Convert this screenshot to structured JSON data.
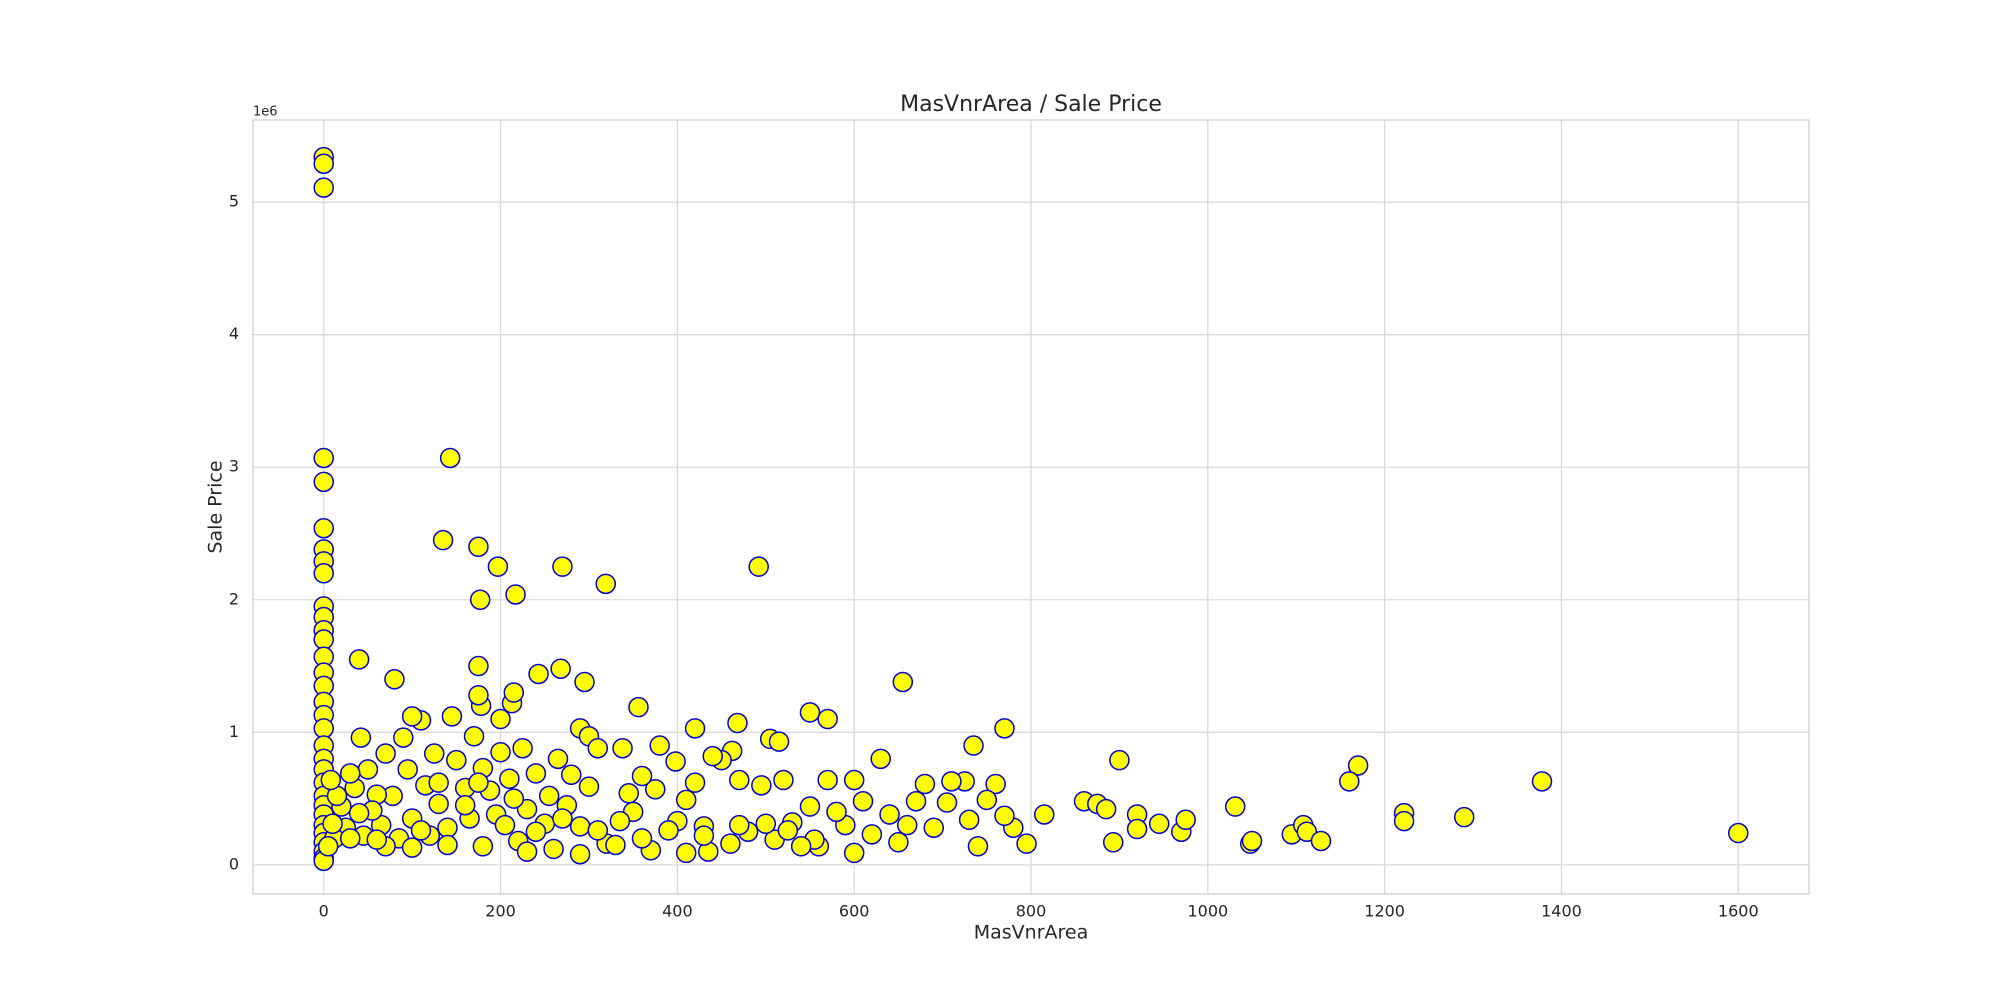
{
  "chart_data": {
    "type": "scatter",
    "title": "MasVnrArea / Sale Price",
    "x_label": "MasVnrArea",
    "y_label": "Sale Price",
    "y_offset_label": "1e6",
    "xlim": [
      -80,
      1680
    ],
    "ylim": [
      -0.22,
      5.62
    ],
    "xticks": [
      0,
      200,
      400,
      600,
      800,
      1000,
      1200,
      1400,
      1600
    ],
    "yticks": [
      0,
      1,
      2,
      3,
      4,
      5
    ],
    "grid": true,
    "x": [
      0,
      0,
      0,
      0,
      0,
      0,
      0,
      0,
      0,
      0,
      0,
      0,
      0,
      0,
      0,
      0,
      0,
      0,
      0,
      0,
      0,
      0,
      0,
      0,
      0,
      0,
      0,
      0,
      0,
      0,
      0,
      0,
      143,
      135,
      175,
      197,
      270,
      492,
      319,
      217,
      177,
      40,
      80,
      175,
      268,
      243,
      295,
      655,
      356,
      550,
      570,
      770,
      420,
      468,
      213,
      215,
      178,
      175,
      290,
      300,
      505,
      515,
      735,
      900,
      1170,
      630,
      1160,
      1378,
      1290,
      1222,
      1222,
      1600,
      1031,
      1048,
      1050,
      1095,
      1108,
      1112,
      1128,
      970,
      975,
      945,
      920,
      920,
      893,
      860,
      875,
      885,
      815,
      795,
      780,
      770,
      760,
      750,
      740,
      730,
      725,
      710,
      705,
      690,
      680,
      670,
      660,
      650,
      640,
      620,
      610,
      600,
      600,
      590,
      580,
      570,
      560,
      555,
      550,
      540,
      530,
      520,
      510,
      500,
      495,
      480,
      470,
      462,
      450,
      440,
      430,
      420,
      410,
      400,
      398,
      380,
      375,
      360,
      350,
      345,
      338,
      320,
      310,
      300,
      290,
      280,
      275,
      265,
      255,
      250,
      240,
      230,
      225,
      220,
      210,
      200,
      200,
      195,
      188,
      180,
      170,
      165,
      160,
      150,
      145,
      140,
      130,
      125,
      120,
      115,
      110,
      100,
      100,
      95,
      90,
      85,
      78,
      70,
      65,
      60,
      55,
      50,
      45,
      42,
      40,
      35,
      30,
      25,
      20,
      15,
      12,
      10,
      8,
      5,
      180,
      230,
      260,
      290,
      330,
      370,
      410,
      435,
      460,
      140,
      100,
      70,
      160,
      205,
      240,
      270,
      310,
      335,
      360,
      390,
      430,
      470,
      525,
      110,
      60,
      30,
      130,
      175,
      215
    ],
    "series": [
      {
        "color": "#ffff00",
        "edge_color": "#0000cc",
        "values": [
          5.34,
          5.29,
          5.11,
          3.07,
          2.89,
          2.54,
          2.38,
          2.29,
          2.2,
          1.95,
          1.87,
          1.77,
          1.7,
          1.57,
          1.45,
          1.35,
          1.23,
          1.13,
          1.03,
          0.9,
          0.8,
          0.72,
          0.62,
          0.52,
          0.45,
          0.38,
          0.3,
          0.24,
          0.17,
          0.1,
          0.05,
          0.03,
          3.07,
          2.45,
          2.4,
          2.25,
          2.25,
          2.25,
          2.12,
          2.04,
          2.0,
          1.55,
          1.4,
          1.5,
          1.48,
          1.44,
          1.38,
          1.38,
          1.19,
          1.15,
          1.1,
          1.03,
          1.03,
          1.07,
          1.22,
          1.3,
          1.2,
          1.28,
          1.03,
          0.97,
          0.95,
          0.93,
          0.9,
          0.79,
          0.75,
          0.8,
          0.63,
          0.63,
          0.36,
          0.39,
          0.33,
          0.24,
          0.44,
          0.16,
          0.18,
          0.23,
          0.3,
          0.25,
          0.18,
          0.25,
          0.34,
          0.31,
          0.38,
          0.27,
          0.17,
          0.48,
          0.46,
          0.42,
          0.38,
          0.16,
          0.28,
          0.37,
          0.61,
          0.49,
          0.14,
          0.34,
          0.63,
          0.63,
          0.47,
          0.28,
          0.61,
          0.48,
          0.3,
          0.17,
          0.38,
          0.23,
          0.48,
          0.64,
          0.09,
          0.3,
          0.4,
          0.64,
          0.14,
          0.19,
          0.44,
          0.14,
          0.32,
          0.64,
          0.19,
          0.31,
          0.6,
          0.25,
          0.64,
          0.86,
          0.79,
          0.82,
          0.29,
          0.62,
          0.49,
          0.33,
          0.78,
          0.9,
          0.57,
          0.67,
          0.4,
          0.54,
          0.88,
          0.16,
          0.88,
          0.59,
          0.29,
          0.68,
          0.45,
          0.8,
          0.52,
          0.31,
          0.69,
          0.42,
          0.88,
          0.18,
          0.65,
          1.1,
          0.85,
          0.38,
          0.56,
          0.73,
          0.97,
          0.35,
          0.58,
          0.79,
          1.12,
          0.28,
          0.46,
          0.84,
          0.22,
          0.6,
          1.09,
          1.12,
          0.35,
          0.72,
          0.96,
          0.2,
          0.52,
          0.84,
          0.3,
          0.53,
          0.41,
          0.72,
          0.22,
          0.96,
          0.39,
          0.58,
          0.69,
          0.28,
          0.44,
          0.52,
          0.2,
          0.31,
          0.64,
          0.14,
          0.14,
          0.1,
          0.12,
          0.08,
          0.15,
          0.11,
          0.09,
          0.1,
          0.16,
          0.15,
          0.13,
          0.14,
          0.45,
          0.3,
          0.25,
          0.35,
          0.26,
          0.33,
          0.2,
          0.26,
          0.22,
          0.3,
          0.26,
          0.26,
          0.19,
          0.2,
          0.62,
          0.62,
          0.5
        ]
      }
    ]
  }
}
